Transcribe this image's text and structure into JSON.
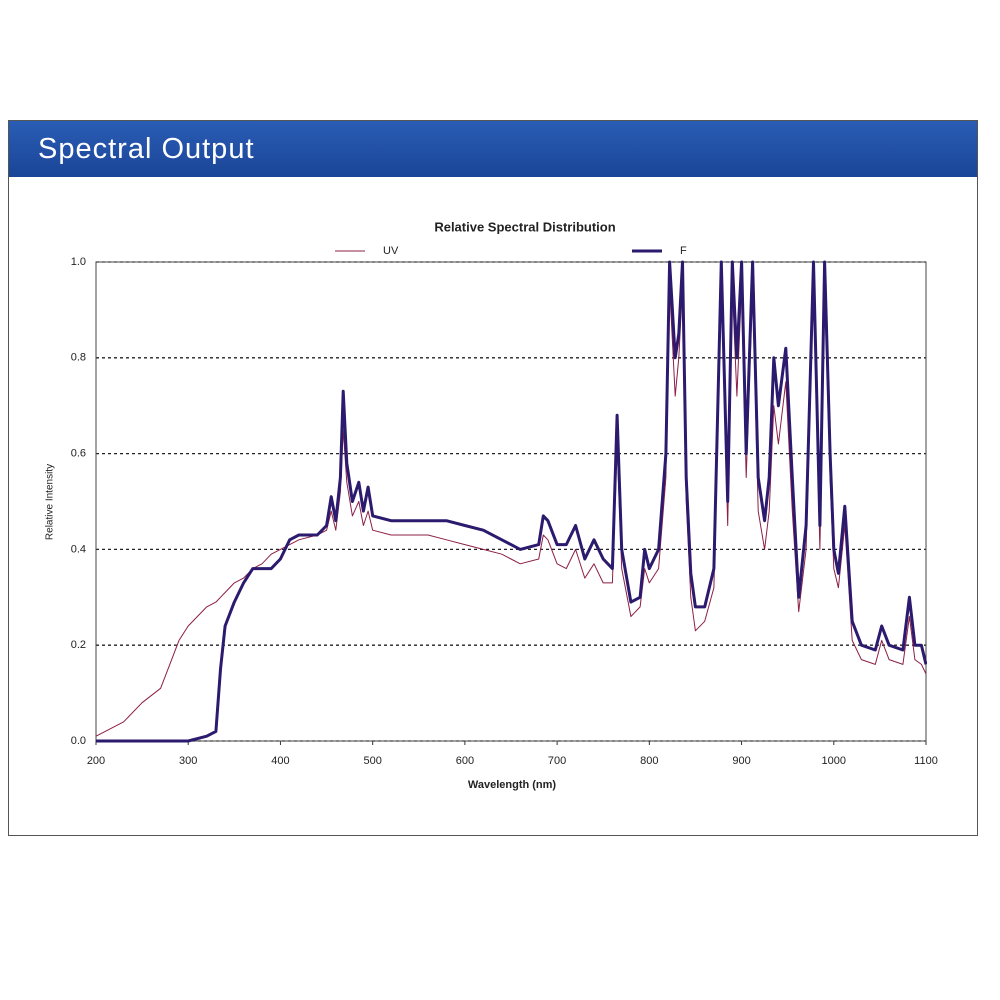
{
  "header": {
    "title": "Spectral Output"
  },
  "chart_data": {
    "type": "line",
    "title": "Relative Spectral Distribution",
    "xlabel": "Wavelength (nm)",
    "ylabel": "Relative Intensity",
    "x": [
      200,
      210,
      230,
      250,
      270,
      280,
      290,
      300,
      320,
      330,
      335,
      340,
      350,
      360,
      370,
      380,
      390,
      400,
      410,
      420,
      440,
      450,
      455,
      460,
      465,
      468,
      472,
      478,
      485,
      490,
      495,
      500,
      520,
      560,
      580,
      600,
      620,
      640,
      650,
      660,
      680,
      685,
      690,
      700,
      710,
      720,
      730,
      740,
      750,
      760,
      765,
      770,
      780,
      790,
      795,
      800,
      810,
      818,
      822,
      828,
      832,
      836,
      840,
      845,
      850,
      860,
      870,
      878,
      885,
      890,
      895,
      900,
      905,
      912,
      918,
      925,
      930,
      935,
      940,
      948,
      955,
      962,
      970,
      978,
      985,
      990,
      996,
      1000,
      1005,
      1012,
      1020,
      1030,
      1045,
      1052,
      1060,
      1075,
      1082,
      1088,
      1095,
      1100
    ],
    "series": [
      {
        "name": "UV",
        "color": "#8c1f45",
        "width": 1,
        "values": [
          0.01,
          0.02,
          0.04,
          0.08,
          0.11,
          0.16,
          0.21,
          0.24,
          0.28,
          0.29,
          0.3,
          0.31,
          0.33,
          0.34,
          0.36,
          0.37,
          0.39,
          0.4,
          0.41,
          0.42,
          0.43,
          0.44,
          0.48,
          0.44,
          0.52,
          0.65,
          0.54,
          0.47,
          0.5,
          0.45,
          0.48,
          0.44,
          0.43,
          0.43,
          0.42,
          0.41,
          0.4,
          0.39,
          0.38,
          0.37,
          0.38,
          0.43,
          0.42,
          0.37,
          0.36,
          0.4,
          0.34,
          0.37,
          0.33,
          0.33,
          0.62,
          0.36,
          0.26,
          0.28,
          0.36,
          0.33,
          0.36,
          0.55,
          0.95,
          0.72,
          0.8,
          0.95,
          0.5,
          0.3,
          0.23,
          0.25,
          0.32,
          0.95,
          0.45,
          0.95,
          0.72,
          0.95,
          0.55,
          0.95,
          0.48,
          0.4,
          0.48,
          0.7,
          0.62,
          0.75,
          0.48,
          0.27,
          0.4,
          0.95,
          0.4,
          0.95,
          0.55,
          0.36,
          0.32,
          0.45,
          0.21,
          0.17,
          0.16,
          0.21,
          0.17,
          0.16,
          0.26,
          0.17,
          0.16,
          0.14
        ]
      },
      {
        "name": "F",
        "color": "#2b1a6e",
        "width": 3,
        "values": [
          0,
          0,
          0,
          0,
          0,
          0,
          0,
          0,
          0.01,
          0.02,
          0.15,
          0.24,
          0.29,
          0.33,
          0.36,
          0.36,
          0.36,
          0.38,
          0.42,
          0.43,
          0.43,
          0.45,
          0.51,
          0.46,
          0.55,
          0.73,
          0.58,
          0.5,
          0.54,
          0.48,
          0.53,
          0.47,
          0.46,
          0.46,
          0.46,
          0.45,
          0.44,
          0.42,
          0.41,
          0.4,
          0.41,
          0.47,
          0.46,
          0.41,
          0.41,
          0.45,
          0.38,
          0.42,
          0.38,
          0.36,
          0.68,
          0.4,
          0.29,
          0.3,
          0.4,
          0.36,
          0.4,
          0.6,
          1.0,
          0.8,
          0.85,
          1.0,
          0.55,
          0.35,
          0.28,
          0.28,
          0.36,
          1.0,
          0.5,
          1.0,
          0.8,
          1.0,
          0.6,
          1.0,
          0.55,
          0.46,
          0.55,
          0.8,
          0.7,
          0.82,
          0.55,
          0.3,
          0.45,
          1.0,
          0.45,
          1.0,
          0.6,
          0.4,
          0.35,
          0.49,
          0.25,
          0.2,
          0.19,
          0.24,
          0.2,
          0.19,
          0.3,
          0.2,
          0.2,
          0.16
        ]
      }
    ],
    "xlim": [
      200,
      1100
    ],
    "xticks": [
      200,
      300,
      400,
      500,
      600,
      700,
      800,
      900,
      1000,
      1100
    ],
    "ylim": [
      0,
      1
    ],
    "yticks": [
      {
        "value": 0,
        "label": "0.0"
      },
      0.2,
      0.4,
      0.6,
      0.8,
      {
        "value": 1,
        "label": "1.0"
      }
    ],
    "grid": true,
    "legend": "top"
  }
}
